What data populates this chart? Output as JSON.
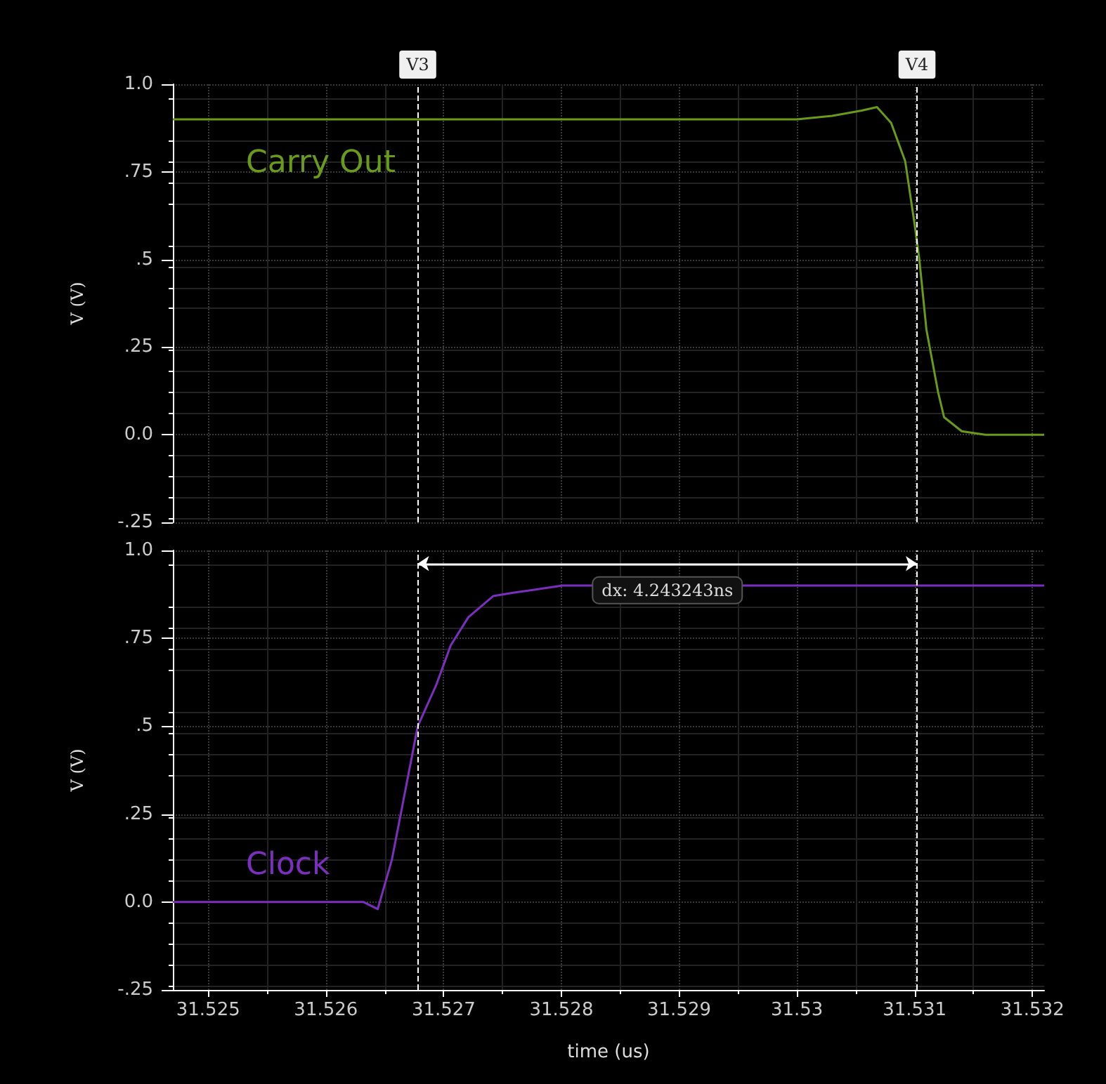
{
  "chart_data": [
    {
      "type": "line",
      "ylabel": "V (V)",
      "xlim": [
        31.5247,
        31.5321
      ],
      "ylim": [
        -0.25,
        1.0
      ],
      "yticks": [
        {
          "value": -0.25,
          "label": "-.25"
        },
        {
          "value": 0,
          "label": "0.0"
        },
        {
          "value": 0.25,
          "label": ".25"
        },
        {
          "value": 0.5,
          "label": ".5"
        },
        {
          "value": 0.75,
          "label": ".75"
        },
        {
          "value": 1.0,
          "label": "1.0"
        }
      ],
      "xticks": [
        31.525,
        31.526,
        31.527,
        31.528,
        31.529,
        31.53,
        31.531,
        31.532
      ],
      "tick_labels": "y",
      "grid": true,
      "legend": "top left",
      "marker": "none",
      "line_style": "solid",
      "ref_lines": [
        {
          "axis": "x",
          "value": 31.52678,
          "label": "V3",
          "color": "#ffffff",
          "line_style": "dashed"
        },
        {
          "axis": "x",
          "value": 31.53102,
          "label": "V4",
          "color": "#ffffff",
          "line_style": "dashed"
        }
      ],
      "series": [
        {
          "name": "Carry Out",
          "color": "#6a9a1a",
          "x": [
            31.5247,
            31.53,
            31.5303,
            31.53055,
            31.53068,
            31.5308,
            31.53092,
            31.531,
            31.53104,
            31.5311,
            31.5312,
            31.53125,
            31.5314,
            31.5316,
            31.5321
          ],
          "values": [
            0.9,
            0.9,
            0.91,
            0.925,
            0.935,
            0.89,
            0.78,
            0.6,
            0.5,
            0.3,
            0.12,
            0.05,
            0.01,
            0,
            0
          ]
        }
      ]
    },
    {
      "type": "line",
      "xlabel": "time (us)",
      "ylabel": "V (V)",
      "xlim": [
        31.5247,
        31.5321
      ],
      "ylim": [
        -0.25,
        1.0
      ],
      "yticks": [
        {
          "value": -0.25,
          "label": "-.25"
        },
        {
          "value": 0,
          "label": "0.0"
        },
        {
          "value": 0.25,
          "label": ".25"
        },
        {
          "value": 0.5,
          "label": ".5"
        },
        {
          "value": 0.75,
          "label": ".75"
        },
        {
          "value": 1.0,
          "label": "1.0"
        }
      ],
      "xticks": [
        31.525,
        31.526,
        31.527,
        31.528,
        31.529,
        31.53,
        31.531,
        31.532
      ],
      "grid": true,
      "legend": "bottom left",
      "marker": "none",
      "line_style": "solid",
      "ref_lines": [
        {
          "axis": "x",
          "value": 31.52678,
          "color": "#ffffff",
          "line_style": "dashed"
        },
        {
          "axis": "x",
          "value": 31.53102,
          "color": "#ffffff",
          "line_style": "dashed"
        }
      ],
      "annotations": [
        "dx: 4.243243ns"
      ],
      "series": [
        {
          "name": "Clock",
          "color": "#7b2fbe",
          "x": [
            31.5247,
            31.52632,
            31.52644,
            31.52656,
            31.52678,
            31.52694,
            31.52706,
            31.52721,
            31.52742,
            31.5276,
            31.52801,
            31.5321
          ],
          "values": [
            0,
            0,
            -0.02,
            0.12,
            0.5,
            0.62,
            0.73,
            0.81,
            0.87,
            0.88,
            0.9,
            0.9
          ]
        }
      ]
    }
  ]
}
